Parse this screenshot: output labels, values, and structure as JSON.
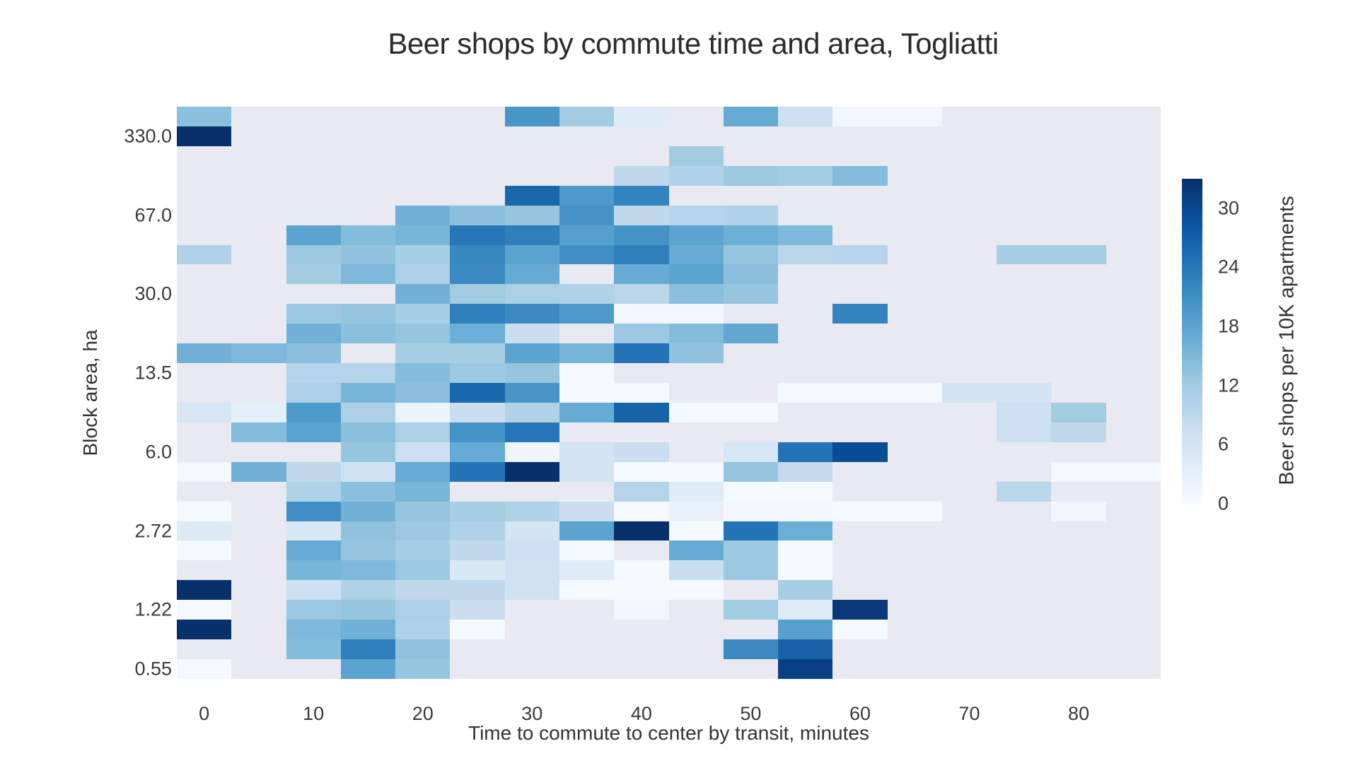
{
  "title": "Beer shops by commute time and area, Togliatti",
  "x_axis": {
    "label": "Time to commute to center by transit, minutes",
    "tick_labels": [
      "0",
      "10",
      "20",
      "30",
      "40",
      "50",
      "60",
      "70",
      "80"
    ],
    "tick_cols": [
      0,
      2,
      4,
      6,
      8,
      10,
      12,
      14,
      16
    ]
  },
  "y_axis": {
    "label": "Block area, ha",
    "tick_labels": [
      "330.0",
      "67.0",
      "30.0",
      "13.5",
      "6.0",
      "2.72",
      "1.22",
      "0.55"
    ],
    "tick_rows": [
      1,
      5,
      9,
      13,
      17,
      21,
      25,
      28
    ]
  },
  "colorbar": {
    "label": "Beer shops per 10K apartments",
    "tick_values": [
      0,
      6,
      12,
      18,
      24,
      30
    ],
    "min": 0,
    "max": 33
  },
  "colors": {
    "page_background": "#ffffff",
    "plot_background": "#e8e9f1",
    "text": "#333333",
    "colormap_name": "Blues",
    "colormap_stops": [
      [
        0.0,
        "#f7fbff"
      ],
      [
        0.125,
        "#deebf7"
      ],
      [
        0.25,
        "#c6dbef"
      ],
      [
        0.375,
        "#9ecae1"
      ],
      [
        0.5,
        "#6baed6"
      ],
      [
        0.625,
        "#4292c6"
      ],
      [
        0.75,
        "#2171b5"
      ],
      [
        0.875,
        "#08519c"
      ],
      [
        1.0,
        "#08306b"
      ]
    ]
  },
  "chart_data": {
    "type": "heatmap",
    "title": "Beer shops by commute time and area, Togliatti",
    "xlabel": "Time to commute to center by transit, minutes",
    "ylabel": "Block area, ha",
    "value_label": "Beer shops per 10K apartments",
    "x_bin_width_minutes": 5,
    "x_bin_centers_minutes": [
      0,
      5,
      10,
      15,
      20,
      25,
      30,
      35,
      40,
      45,
      50,
      55,
      60,
      65,
      70,
      75,
      80,
      85
    ],
    "n_cols": 18,
    "n_rows": 29,
    "value_range": [
      0,
      33
    ],
    "note": "rows ordered top (largest area ~330 ha) to bottom (smallest ~0.55 ha), log-spaced bins; null = no data (plot background shows through)",
    "cells": [
      [
        14,
        null,
        null,
        null,
        null,
        null,
        20,
        12,
        4,
        null,
        17,
        7,
        1,
        1,
        null,
        null,
        null,
        null
      ],
      [
        33,
        null,
        null,
        null,
        null,
        null,
        null,
        null,
        null,
        null,
        null,
        null,
        null,
        null,
        null,
        null,
        null,
        null
      ],
      [
        null,
        null,
        null,
        null,
        null,
        null,
        null,
        null,
        null,
        12,
        null,
        null,
        null,
        null,
        null,
        null,
        null,
        null
      ],
      [
        null,
        null,
        null,
        null,
        null,
        null,
        null,
        null,
        9,
        10.5,
        12.5,
        12,
        14.5,
        null,
        null,
        null,
        null,
        null
      ],
      [
        null,
        null,
        null,
        null,
        null,
        null,
        26,
        19.5,
        22.5,
        null,
        null,
        null,
        null,
        null,
        null,
        null,
        null,
        null
      ],
      [
        null,
        null,
        null,
        null,
        16,
        14,
        13,
        20.5,
        9,
        10,
        10.5,
        null,
        null,
        null,
        null,
        null,
        null,
        null
      ],
      [
        null,
        null,
        18,
        14.5,
        15.5,
        24,
        23,
        18.5,
        20.5,
        18,
        16.5,
        15,
        null,
        null,
        null,
        null,
        null,
        null
      ],
      [
        10.5,
        null,
        12.5,
        13.5,
        11.5,
        22,
        18,
        21,
        23,
        17,
        13,
        9.5,
        10,
        null,
        null,
        11.5,
        11.5,
        null
      ],
      [
        null,
        null,
        12,
        15,
        11,
        21.5,
        17,
        null,
        17,
        18,
        14,
        null,
        null,
        null,
        null,
        null,
        null,
        null
      ],
      [
        null,
        null,
        null,
        null,
        16,
        12,
        11,
        10.5,
        9.5,
        14,
        13,
        null,
        null,
        null,
        null,
        null,
        null,
        null
      ],
      [
        null,
        null,
        12.5,
        13,
        11.5,
        23,
        21.5,
        19.5,
        1,
        1,
        null,
        null,
        22.5,
        null,
        null,
        null,
        null,
        null
      ],
      [
        null,
        null,
        16,
        14,
        13,
        16.5,
        7.5,
        null,
        12.5,
        14.5,
        17.5,
        null,
        null,
        null,
        null,
        null,
        null,
        null
      ],
      [
        16,
        15,
        14,
        null,
        11.5,
        11.5,
        18,
        15.5,
        24.5,
        13.5,
        null,
        null,
        null,
        null,
        null,
        null,
        null,
        null
      ],
      [
        null,
        null,
        10,
        10,
        14.5,
        12.5,
        13,
        0.5,
        null,
        null,
        null,
        null,
        null,
        null,
        null,
        null,
        null,
        null
      ],
      [
        null,
        null,
        11,
        15.5,
        14,
        26,
        20,
        0.5,
        0.5,
        null,
        null,
        0.5,
        0.5,
        0.5,
        6,
        6,
        null,
        null
      ],
      [
        5.5,
        3,
        19.5,
        11,
        2,
        7.5,
        10.5,
        17,
        26.5,
        0.5,
        0.5,
        null,
        null,
        null,
        null,
        7,
        12,
        null
      ],
      [
        null,
        14.5,
        18,
        14,
        11,
        20.5,
        24,
        null,
        null,
        null,
        null,
        null,
        null,
        null,
        null,
        7,
        9,
        null
      ],
      [
        null,
        null,
        null,
        13,
        7,
        17,
        1.5,
        6,
        7.5,
        null,
        5.5,
        24.5,
        29.5,
        null,
        null,
        null,
        null,
        null
      ],
      [
        0.5,
        16,
        9,
        6.5,
        17,
        24.5,
        33,
        6,
        0.5,
        0.5,
        13,
        8.5,
        null,
        null,
        null,
        null,
        0.5,
        0.5
      ],
      [
        null,
        null,
        10.5,
        14,
        15.5,
        null,
        null,
        null,
        10,
        4,
        0.5,
        0.5,
        null,
        null,
        null,
        9.5,
        null,
        null
      ],
      [
        0.5,
        null,
        21,
        16,
        13,
        11.5,
        10.5,
        7.5,
        0.5,
        2.5,
        1,
        1,
        0.5,
        0.5,
        null,
        null,
        1,
        null
      ],
      [
        4.5,
        null,
        5,
        13.5,
        12.5,
        10.5,
        6,
        18,
        33,
        0.5,
        24.5,
        16.5,
        null,
        null,
        null,
        null,
        null,
        null
      ],
      [
        0.5,
        null,
        17,
        13,
        11.5,
        9,
        7,
        0.5,
        null,
        17,
        12.5,
        0.5,
        null,
        null,
        null,
        null,
        null,
        null
      ],
      [
        null,
        null,
        15.5,
        15,
        12.5,
        5,
        6.5,
        4,
        0.5,
        7.5,
        12.5,
        0.5,
        null,
        null,
        null,
        null,
        null,
        null
      ],
      [
        33,
        null,
        7,
        10.5,
        9,
        9,
        6.5,
        0.5,
        0.5,
        0.5,
        null,
        11.5,
        null,
        null,
        null,
        null,
        null,
        null
      ],
      [
        0.5,
        null,
        12.5,
        13,
        11,
        7.5,
        null,
        null,
        1,
        null,
        12,
        4,
        32,
        null,
        null,
        null,
        null,
        null
      ],
      [
        33,
        null,
        15,
        16,
        10.5,
        0.5,
        null,
        null,
        null,
        null,
        null,
        18.5,
        0.5,
        null,
        null,
        null,
        null,
        null
      ],
      [
        null,
        null,
        14.5,
        23,
        13.5,
        null,
        null,
        null,
        null,
        null,
        21.5,
        26.5,
        null,
        null,
        null,
        null,
        null,
        null
      ],
      [
        0.5,
        null,
        null,
        18,
        13,
        null,
        null,
        null,
        null,
        null,
        null,
        31,
        null,
        null,
        null,
        null,
        null,
        null
      ]
    ]
  }
}
